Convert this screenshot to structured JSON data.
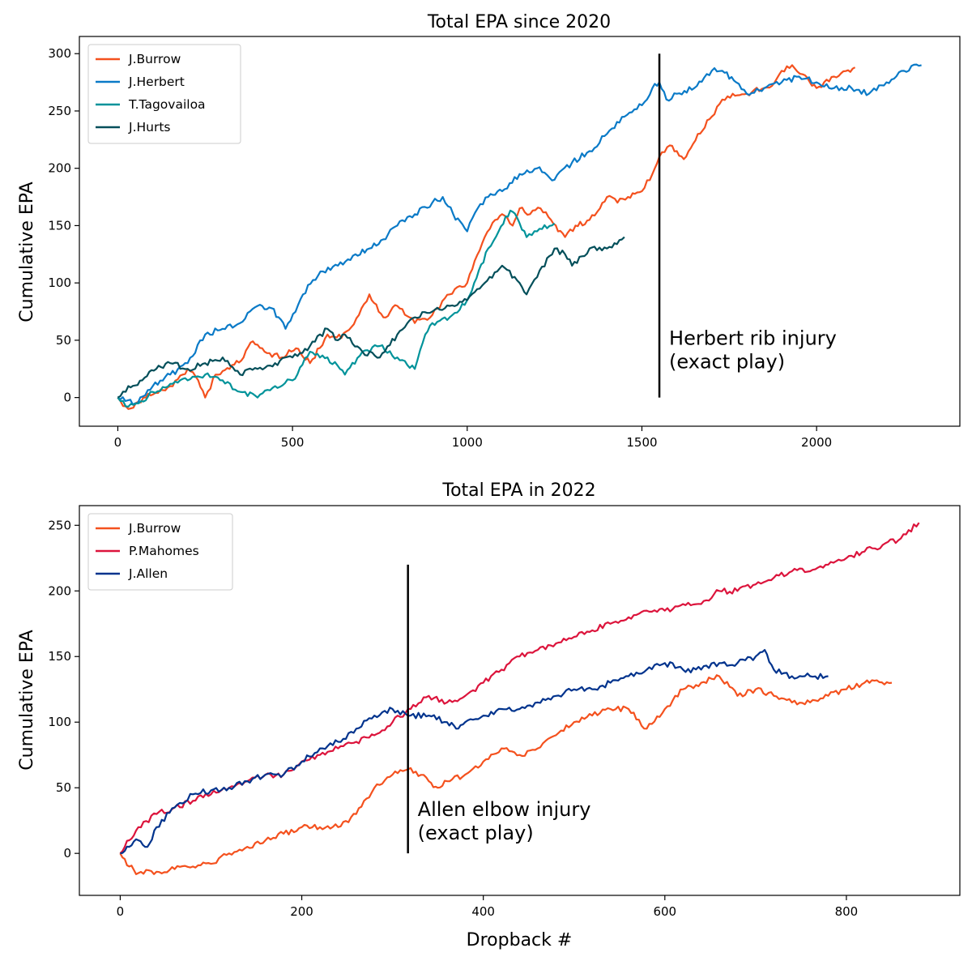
{
  "chart_data": [
    {
      "type": "line",
      "title": "Total EPA since 2020",
      "xlabel": "",
      "ylabel": "Cumulative EPA",
      "xlim": [
        -110,
        2410
      ],
      "ylim": [
        -25,
        315
      ],
      "xticks": [
        0,
        500,
        1000,
        1500,
        2000
      ],
      "yticks": [
        0,
        50,
        100,
        150,
        200,
        250,
        300
      ],
      "grid": false,
      "legend": "top-left",
      "series": [
        {
          "name": "J.Burrow",
          "color": "#f4511e",
          "x": [
            0,
            30,
            80,
            150,
            200,
            230,
            250,
            280,
            320,
            360,
            380,
            420,
            470,
            510,
            550,
            600,
            640,
            690,
            720,
            760,
            800,
            850,
            900,
            950,
            1000,
            1050,
            1080,
            1100,
            1130,
            1150,
            1180,
            1210,
            1240,
            1260,
            1280,
            1310,
            1350,
            1380,
            1400,
            1430,
            1460,
            1500,
            1530,
            1550,
            1580,
            1600,
            1620,
            1660,
            1700,
            1730,
            1760,
            1800,
            1850,
            1880,
            1900,
            1930,
            1960,
            2000,
            2050,
            2110
          ],
          "y": [
            0,
            -10,
            0,
            10,
            25,
            15,
            0,
            20,
            25,
            35,
            48,
            40,
            35,
            43,
            30,
            55,
            52,
            72,
            90,
            70,
            80,
            65,
            72,
            90,
            100,
            140,
            155,
            160,
            150,
            165,
            160,
            165,
            155,
            145,
            140,
            150,
            155,
            165,
            175,
            170,
            175,
            180,
            195,
            210,
            220,
            215,
            208,
            230,
            245,
            260,
            265,
            265,
            270,
            275,
            285,
            290,
            282,
            270,
            280,
            288
          ]
        },
        {
          "name": "J.Herbert",
          "color": "#0a7ac7",
          "x": [
            0,
            50,
            100,
            150,
            200,
            250,
            300,
            350,
            400,
            440,
            480,
            530,
            580,
            630,
            680,
            720,
            760,
            800,
            850,
            900,
            930,
            960,
            1000,
            1030,
            1060,
            1100,
            1150,
            1200,
            1250,
            1300,
            1350,
            1400,
            1450,
            1500,
            1530,
            1550,
            1570,
            1600,
            1650,
            1700,
            1730,
            1770,
            1800,
            1850,
            1900,
            1950,
            2000,
            2050,
            2100,
            2150,
            2200,
            2250,
            2300
          ],
          "y": [
            0,
            -5,
            10,
            20,
            30,
            55,
            60,
            65,
            80,
            78,
            60,
            90,
            110,
            115,
            125,
            130,
            138,
            150,
            160,
            170,
            175,
            160,
            145,
            165,
            175,
            180,
            195,
            200,
            190,
            205,
            215,
            230,
            245,
            255,
            270,
            275,
            260,
            265,
            270,
            285,
            285,
            275,
            265,
            270,
            275,
            280,
            275,
            270,
            270,
            265,
            275,
            285,
            290
          ]
        },
        {
          "name": "T.Tagovailoa",
          "color": "#00939a",
          "x": [
            0,
            30,
            60,
            100,
            150,
            200,
            250,
            300,
            350,
            400,
            450,
            500,
            550,
            600,
            650,
            700,
            750,
            800,
            850,
            880,
            900,
            950,
            1000,
            1020,
            1060,
            1090,
            1110,
            1130,
            1150,
            1170,
            1200,
            1250
          ],
          "y": [
            0,
            -8,
            -5,
            5,
            12,
            15,
            20,
            15,
            5,
            0,
            10,
            15,
            40,
            35,
            20,
            40,
            45,
            35,
            25,
            55,
            65,
            70,
            85,
            100,
            130,
            145,
            158,
            162,
            152,
            140,
            145,
            152
          ]
        },
        {
          "name": "J.Hurts",
          "color": "#034f5a",
          "x": [
            0,
            30,
            70,
            110,
            150,
            200,
            250,
            300,
            350,
            400,
            450,
            500,
            550,
            600,
            630,
            650,
            700,
            750,
            800,
            850,
            900,
            950,
            1000,
            1050,
            1100,
            1150,
            1170,
            1200,
            1250,
            1280,
            1300,
            1350,
            1400,
            1450
          ],
          "y": [
            0,
            10,
            15,
            25,
            30,
            25,
            30,
            35,
            20,
            25,
            30,
            35,
            45,
            60,
            50,
            55,
            40,
            35,
            55,
            70,
            75,
            80,
            85,
            100,
            115,
            100,
            90,
            105,
            130,
            125,
            115,
            130,
            130,
            140
          ]
        }
      ],
      "annotation": {
        "x": 1550,
        "y_from": 0,
        "y_to": 300,
        "text_line1": "Herbert rib injury",
        "text_line2": "(exact play)"
      }
    },
    {
      "type": "line",
      "title": "Total EPA in 2022",
      "xlabel": "Dropback #",
      "ylabel": "Cumulative EPA",
      "xlim": [
        -45,
        925
      ],
      "ylim": [
        -32,
        265
      ],
      "xticks": [
        0,
        200,
        400,
        600,
        800
      ],
      "yticks": [
        0,
        50,
        100,
        150,
        200,
        250
      ],
      "grid": false,
      "legend": "top-left",
      "series": [
        {
          "name": "J.Burrow",
          "color": "#f4511e",
          "x": [
            0,
            10,
            20,
            40,
            60,
            80,
            100,
            120,
            140,
            160,
            180,
            200,
            220,
            240,
            260,
            280,
            300,
            320,
            340,
            350,
            360,
            380,
            400,
            420,
            440,
            460,
            480,
            500,
            520,
            540,
            560,
            580,
            600,
            620,
            640,
            660,
            680,
            700,
            720,
            740,
            760,
            780,
            800,
            820,
            850
          ],
          "y": [
            0,
            -10,
            -15,
            -14,
            -12,
            -10,
            -8,
            0,
            5,
            10,
            15,
            20,
            20,
            20,
            30,
            50,
            60,
            65,
            55,
            50,
            55,
            60,
            70,
            80,
            75,
            80,
            90,
            100,
            105,
            110,
            110,
            95,
            110,
            125,
            130,
            135,
            120,
            125,
            120,
            115,
            115,
            120,
            125,
            130,
            130
          ]
        },
        {
          "name": "P.Mahomes",
          "color": "#dc143c",
          "x": [
            0,
            10,
            20,
            40,
            60,
            80,
            100,
            120,
            140,
            160,
            180,
            200,
            220,
            240,
            260,
            280,
            300,
            320,
            340,
            360,
            380,
            400,
            420,
            440,
            460,
            480,
            500,
            520,
            540,
            560,
            580,
            600,
            620,
            640,
            660,
            680,
            700,
            720,
            740,
            760,
            780,
            800,
            820,
            840,
            860,
            880
          ],
          "y": [
            0,
            10,
            20,
            30,
            35,
            40,
            45,
            50,
            55,
            60,
            60,
            70,
            75,
            80,
            85,
            90,
            100,
            110,
            120,
            115,
            120,
            130,
            140,
            150,
            155,
            160,
            165,
            170,
            175,
            180,
            185,
            185,
            190,
            190,
            200,
            200,
            205,
            210,
            215,
            215,
            220,
            225,
            230,
            235,
            240,
            252
          ]
        },
        {
          "name": "J.Allen",
          "color": "#00338d",
          "x": [
            0,
            10,
            20,
            30,
            40,
            60,
            80,
            100,
            120,
            140,
            160,
            180,
            200,
            220,
            240,
            260,
            280,
            300,
            320,
            340,
            360,
            370,
            380,
            400,
            420,
            440,
            460,
            480,
            500,
            520,
            540,
            560,
            580,
            600,
            620,
            640,
            660,
            680,
            700,
            710,
            720,
            740,
            760,
            780
          ],
          "y": [
            0,
            5,
            10,
            5,
            20,
            35,
            45,
            48,
            50,
            55,
            60,
            60,
            70,
            80,
            85,
            95,
            105,
            110,
            105,
            105,
            100,
            95,
            100,
            105,
            110,
            110,
            115,
            120,
            125,
            125,
            130,
            135,
            140,
            145,
            140,
            140,
            145,
            145,
            150,
            155,
            140,
            135,
            135,
            135
          ]
        }
      ],
      "annotation": {
        "x": 317,
        "y_from": 0,
        "y_to": 220,
        "text_line1": "Allen elbow injury",
        "text_line2": "(exact play)"
      }
    }
  ]
}
